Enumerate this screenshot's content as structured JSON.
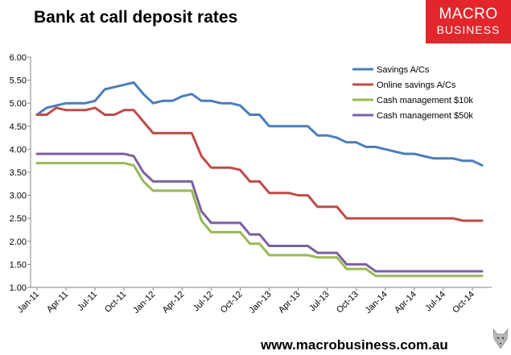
{
  "page": {
    "footer_url": "www.macrobusiness.com.au"
  },
  "logo": {
    "line1": "MACRO",
    "line2": "BUSINESS"
  },
  "chart_data": {
    "type": "line",
    "title": "Bank at call deposit rates",
    "xlabel": "",
    "ylabel": "",
    "ylim": [
      1.0,
      6.0
    ],
    "y_ticks": [
      "1.00",
      "1.50",
      "2.00",
      "2.50",
      "3.00",
      "3.50",
      "4.00",
      "4.50",
      "5.00",
      "5.50",
      "6.00"
    ],
    "x_tick_labels": [
      "Jan-11",
      "Apr-11",
      "Jul-11",
      "Oct-11",
      "Jan-12",
      "Apr-12",
      "Jul-12",
      "Oct-12",
      "Jan-13",
      "Apr-13",
      "Jul-13",
      "Oct-13",
      "Jan-14",
      "Apr-14",
      "Jul-14",
      "Oct-14"
    ],
    "x_tick_step_months": 3,
    "grid": false,
    "legend_position": "top-right",
    "series": [
      {
        "name": "Savings A/Cs",
        "color": "#4a7ebb",
        "values": [
          4.75,
          4.9,
          4.95,
          5.0,
          5.0,
          5.0,
          5.05,
          5.3,
          5.35,
          5.4,
          5.45,
          5.2,
          5.0,
          5.05,
          5.05,
          5.15,
          5.2,
          5.05,
          5.05,
          5.0,
          5.0,
          4.95,
          4.75,
          4.75,
          4.5,
          4.5,
          4.5,
          4.5,
          4.5,
          4.3,
          4.3,
          4.25,
          4.15,
          4.15,
          4.05,
          4.05,
          4.0,
          3.95,
          3.9,
          3.9,
          3.85,
          3.8,
          3.8,
          3.8,
          3.75,
          3.75,
          3.65
        ]
      },
      {
        "name": "Online savings A/Cs",
        "color": "#be4b48",
        "values": [
          4.75,
          4.75,
          4.9,
          4.85,
          4.85,
          4.85,
          4.9,
          4.75,
          4.75,
          4.85,
          4.85,
          4.6,
          4.35,
          4.35,
          4.35,
          4.35,
          4.35,
          3.85,
          3.6,
          3.6,
          3.6,
          3.55,
          3.3,
          3.3,
          3.05,
          3.05,
          3.05,
          3.0,
          3.0,
          2.75,
          2.75,
          2.75,
          2.5,
          2.5,
          2.5,
          2.5,
          2.5,
          2.5,
          2.5,
          2.5,
          2.5,
          2.5,
          2.5,
          2.5,
          2.45,
          2.45,
          2.45
        ]
      },
      {
        "name": "Cash management $10k",
        "color": "#98b954",
        "values": [
          3.7,
          3.7,
          3.7,
          3.7,
          3.7,
          3.7,
          3.7,
          3.7,
          3.7,
          3.7,
          3.65,
          3.3,
          3.1,
          3.1,
          3.1,
          3.1,
          3.1,
          2.45,
          2.2,
          2.2,
          2.2,
          2.2,
          1.95,
          1.95,
          1.7,
          1.7,
          1.7,
          1.7,
          1.7,
          1.65,
          1.65,
          1.65,
          1.4,
          1.4,
          1.4,
          1.25,
          1.25,
          1.25,
          1.25,
          1.25,
          1.25,
          1.25,
          1.25,
          1.25,
          1.25,
          1.25,
          1.25
        ]
      },
      {
        "name": "Cash management $50k",
        "color": "#7d60a0",
        "values": [
          3.9,
          3.9,
          3.9,
          3.9,
          3.9,
          3.9,
          3.9,
          3.9,
          3.9,
          3.9,
          3.85,
          3.5,
          3.3,
          3.3,
          3.3,
          3.3,
          3.3,
          2.65,
          2.4,
          2.4,
          2.4,
          2.4,
          2.15,
          2.15,
          1.9,
          1.9,
          1.9,
          1.9,
          1.9,
          1.75,
          1.75,
          1.75,
          1.5,
          1.5,
          1.5,
          1.35,
          1.35,
          1.35,
          1.35,
          1.35,
          1.35,
          1.35,
          1.35,
          1.35,
          1.35,
          1.35,
          1.35
        ]
      }
    ]
  }
}
